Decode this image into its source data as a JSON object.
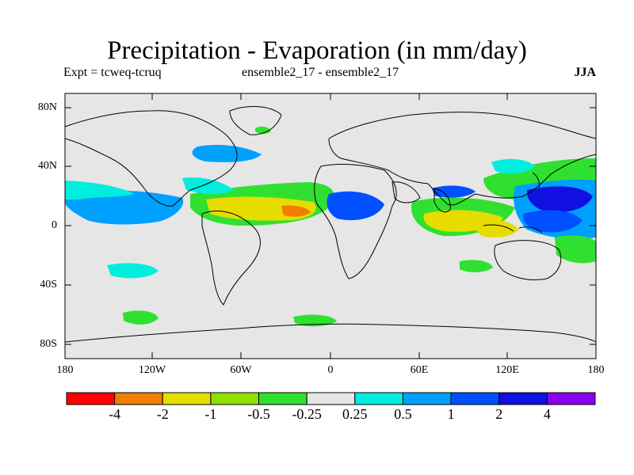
{
  "title": "Precipitation - Evaporation (in mm/day)",
  "subtitle_left": "Expt = tcweq-tcruq",
  "subtitle_center": "ensemble2_17 - ensemble2_17",
  "subtitle_right": "JJA",
  "lat_ticks": [
    "80N",
    "40N",
    "0",
    "40S",
    "80S"
  ],
  "lon_ticks": [
    "180",
    "120W",
    "60W",
    "0",
    "60E",
    "120E",
    "180"
  ],
  "colorbar": {
    "colors": [
      "#ff0000",
      "#f07e00",
      "#e6dc00",
      "#90e000",
      "#30e030",
      "#e6e6e6",
      "#00eedd",
      "#00a0ff",
      "#0050ff",
      "#1010e0",
      "#8800ee"
    ],
    "labels": [
      "-4",
      "-2",
      "-1",
      "-0.5",
      "-0.25",
      "0.25",
      "0.5",
      "1",
      "2",
      "4"
    ]
  },
  "colors": {
    "ocean": "#e6e6e6",
    "coast": "#000000"
  }
}
